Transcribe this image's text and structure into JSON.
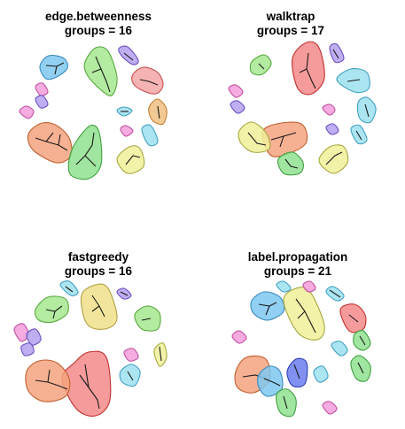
{
  "panels": [
    {
      "algorithm": "edge.betweenness",
      "groups_label": "groups = 16",
      "communities": [
        {
          "color": "#7ec8f0",
          "stroke": "#3a8ac0"
        },
        {
          "color": "#a6e88f",
          "stroke": "#5aa840"
        },
        {
          "color": "#f4a6a6",
          "stroke": "#c85050"
        },
        {
          "color": "#b4a0f0",
          "stroke": "#6a50c0"
        },
        {
          "color": "#f59ddb",
          "stroke": "#c050a0"
        },
        {
          "color": "#9ee0f0",
          "stroke": "#40a0c0"
        },
        {
          "color": "#f0c080",
          "stroke": "#c08030"
        },
        {
          "color": "#f5a37f",
          "stroke": "#c06030"
        },
        {
          "color": "#8fe08f",
          "stroke": "#40a040"
        },
        {
          "color": "#f0f09a",
          "stroke": "#a8a840"
        }
      ]
    },
    {
      "algorithm": "walktrap",
      "groups_label": "groups = 17",
      "communities": [
        {
          "color": "#f48a8a",
          "stroke": "#c03030"
        },
        {
          "color": "#a6e88f",
          "stroke": "#5aa840"
        },
        {
          "color": "#f5a37f",
          "stroke": "#c06030"
        },
        {
          "color": "#f0f09a",
          "stroke": "#a8a840"
        },
        {
          "color": "#8fe08f",
          "stroke": "#40a040"
        },
        {
          "color": "#9ee0f0",
          "stroke": "#40a0c0"
        },
        {
          "color": "#b4a0f0",
          "stroke": "#6a50c0"
        },
        {
          "color": "#f59ddb",
          "stroke": "#c050a0"
        }
      ]
    },
    {
      "algorithm": "fastgreedy",
      "groups_label": "groups = 16",
      "communities": [
        {
          "color": "#f0e08a",
          "stroke": "#b0a040"
        },
        {
          "color": "#a6e88f",
          "stroke": "#5aa840"
        },
        {
          "color": "#f5a37f",
          "stroke": "#c06030"
        },
        {
          "color": "#f48a8a",
          "stroke": "#c03030"
        },
        {
          "color": "#b4a0f0",
          "stroke": "#6a50c0"
        },
        {
          "color": "#f59ddb",
          "stroke": "#c050a0"
        },
        {
          "color": "#9ee0f0",
          "stroke": "#40a0c0"
        },
        {
          "color": "#f0f09a",
          "stroke": "#a8a840"
        }
      ]
    },
    {
      "algorithm": "label.propagation",
      "groups_label": "groups = 21",
      "communities": [
        {
          "color": "#7ec8f0",
          "stroke": "#3a8ac0"
        },
        {
          "color": "#f0f09a",
          "stroke": "#a8a840"
        },
        {
          "color": "#f48a8a",
          "stroke": "#c03030"
        },
        {
          "color": "#f5a37f",
          "stroke": "#c06030"
        },
        {
          "color": "#6a7ef0",
          "stroke": "#3040b0"
        },
        {
          "color": "#8fe08f",
          "stroke": "#40a040"
        },
        {
          "color": "#f59ddb",
          "stroke": "#c050a0"
        },
        {
          "color": "#9ee0f0",
          "stroke": "#40a0c0"
        }
      ]
    }
  ]
}
